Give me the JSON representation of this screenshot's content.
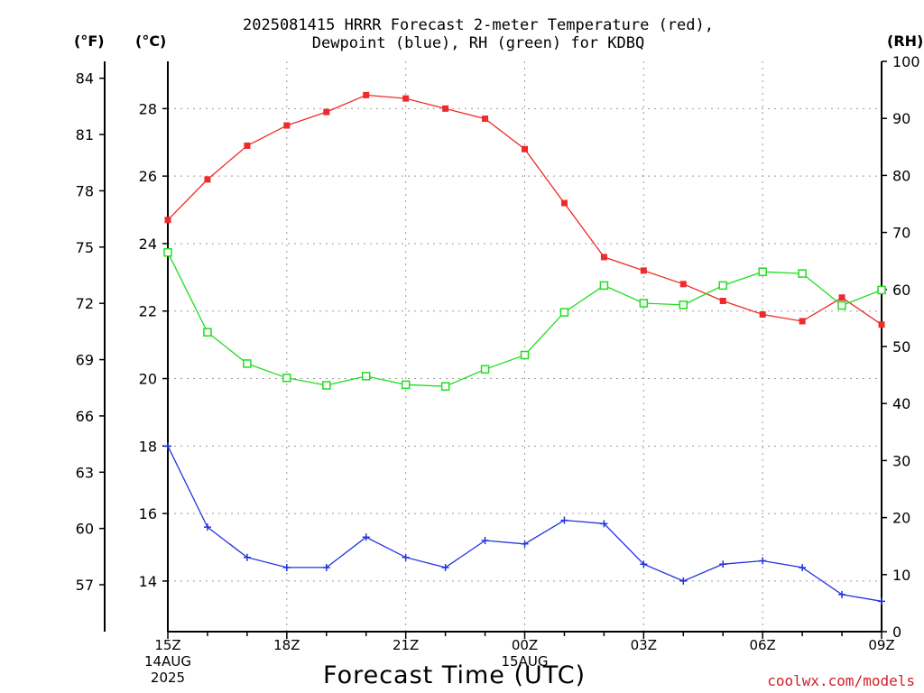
{
  "header": {
    "title_line1": "2025081415 HRRR Forecast 2-meter Temperature (red),",
    "title_line2": "Dewpoint (blue), RH (green) for KDBQ",
    "unit_f": "(°F)",
    "unit_c": "(°C)",
    "unit_rh": "(RH)"
  },
  "footer": {
    "xlabel": "Forecast Time (UTC)",
    "credit": "coolwx.com/models"
  },
  "chart_data": {
    "type": "line",
    "title": "2025081415 HRRR Forecast 2-meter Temperature (red), Dewpoint (blue), RH (green) for KDBQ",
    "xlabel": "Forecast Time (UTC)",
    "x": [
      "15Z",
      "16Z",
      "17Z",
      "18Z",
      "19Z",
      "20Z",
      "21Z",
      "22Z",
      "23Z",
      "00Z",
      "01Z",
      "02Z",
      "03Z",
      "04Z",
      "05Z",
      "06Z",
      "07Z",
      "08Z",
      "09Z"
    ],
    "x_ticks": [
      {
        "index": 0,
        "lines": [
          "15Z",
          "14AUG",
          "2025"
        ]
      },
      {
        "index": 3,
        "lines": [
          "18Z"
        ]
      },
      {
        "index": 6,
        "lines": [
          "21Z"
        ]
      },
      {
        "index": 9,
        "lines": [
          "00Z",
          "15AUG"
        ]
      },
      {
        "index": 12,
        "lines": [
          "03Z"
        ]
      },
      {
        "index": 15,
        "lines": [
          "06Z"
        ]
      },
      {
        "index": 18,
        "lines": [
          "09Z"
        ]
      }
    ],
    "axes": {
      "celsius": {
        "range": [
          12.5,
          29.4
        ],
        "ticks": [
          14,
          16,
          18,
          20,
          22,
          24,
          26,
          28
        ]
      },
      "fahrenheit": {
        "range": [
          54.5,
          84.9
        ],
        "ticks": [
          57,
          60,
          63,
          66,
          69,
          72,
          75,
          78,
          81,
          84
        ]
      },
      "rh": {
        "range": [
          0,
          100
        ],
        "ticks": [
          0,
          10,
          20,
          30,
          40,
          50,
          60,
          70,
          80,
          90,
          100
        ]
      }
    },
    "grid": true,
    "series": [
      {
        "name": "Temperature",
        "axis": "celsius",
        "color": "#ee2a2a",
        "marker": "filled-square",
        "values": [
          24.7,
          25.9,
          26.9,
          27.5,
          27.9,
          28.4,
          28.3,
          28.0,
          27.7,
          26.8,
          25.2,
          23.6,
          23.2,
          22.8,
          22.3,
          21.9,
          21.7,
          22.4,
          21.6
        ]
      },
      {
        "name": "Dewpoint",
        "axis": "celsius",
        "color": "#2233dd",
        "marker": "plus",
        "values": [
          18.0,
          15.6,
          14.7,
          14.4,
          14.4,
          15.3,
          14.7,
          14.4,
          15.2,
          15.1,
          15.8,
          15.7,
          14.5,
          14.0,
          14.5,
          14.6,
          14.4,
          13.6,
          13.4
        ]
      },
      {
        "name": "RH",
        "axis": "rh",
        "color": "#22dd22",
        "marker": "open-square",
        "values": [
          66.5,
          52.5,
          47.0,
          44.5,
          43.2,
          44.8,
          43.3,
          43.0,
          46.0,
          48.5,
          56.0,
          60.7,
          57.6,
          57.3,
          60.7,
          63.1,
          62.8,
          57.2,
          59.9
        ]
      }
    ]
  }
}
